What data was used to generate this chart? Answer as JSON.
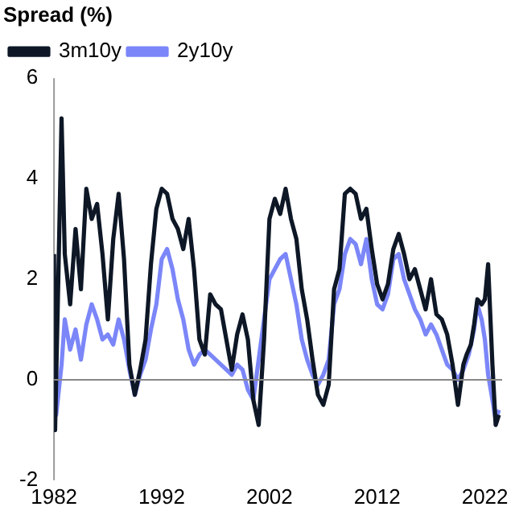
{
  "chart_data": {
    "type": "line",
    "ylabel": "Spread (%)",
    "xlim": [
      1982,
      2023.6
    ],
    "xticks": [
      1982,
      1992,
      2002,
      2012,
      2022
    ],
    "ylim": [
      -2,
      6
    ],
    "yticks": [
      -2,
      0,
      2,
      4,
      6
    ],
    "grid": false,
    "legend": "top left",
    "marker": "none",
    "line_style": "solid",
    "ref_lines": [
      {
        "axis": "y",
        "value": 0
      }
    ],
    "series": [
      {
        "name": "3m10y",
        "color": "#0d1726",
        "x": [
          1982,
          1982.1,
          1982.4,
          1982.7,
          1983,
          1983.5,
          1984,
          1984.5,
          1985,
          1985.5,
          1986,
          1986.5,
          1987,
          1987.5,
          1988,
          1988.5,
          1989,
          1989.5,
          1990,
          1990.5,
          1991,
          1991.5,
          1992,
          1992.5,
          1993,
          1993.5,
          1994,
          1994.5,
          1995,
          1995.5,
          1996,
          1996.5,
          1997,
          1997.5,
          1998,
          1998.5,
          1999,
          1999.5,
          2000,
          2000.5,
          2001,
          2001.5,
          2002,
          2002.5,
          2003,
          2003.5,
          2004,
          2004.5,
          2005,
          2005.5,
          2006,
          2006.5,
          2007,
          2007.5,
          2008,
          2008.5,
          2009,
          2009.5,
          2010,
          2010.5,
          2011,
          2011.5,
          2012,
          2012.5,
          2013,
          2013.5,
          2014,
          2014.5,
          2015,
          2015.5,
          2016,
          2016.5,
          2017,
          2017.5,
          2018,
          2018.5,
          2019,
          2019.5,
          2020,
          2020.3,
          2020.7,
          2021,
          2021.3,
          2021.7,
          2022,
          2022.3,
          2022.7,
          2023,
          2023.3
        ],
        "values": [
          2.5,
          -1,
          2,
          5.2,
          2.5,
          1.5,
          3,
          1.8,
          3.8,
          3.2,
          3.5,
          2.5,
          1.2,
          2.8,
          3.7,
          2.4,
          0.3,
          -0.3,
          0.2,
          0.8,
          2.3,
          3.4,
          3.8,
          3.7,
          3.2,
          3,
          2.6,
          3.2,
          2.2,
          0.8,
          0.5,
          1.7,
          1.5,
          1.4,
          0.8,
          0.2,
          0.9,
          1.3,
          0.8,
          -0.4,
          -0.9,
          0.8,
          3.2,
          3.6,
          3.3,
          3.8,
          3.2,
          2.8,
          1.8,
          1.2,
          0.4,
          -0.3,
          -0.5,
          -0.1,
          1.8,
          2.2,
          3.7,
          3.8,
          3.7,
          3.2,
          3.4,
          2.6,
          1.9,
          1.6,
          1.9,
          2.6,
          2.9,
          2.5,
          2,
          2.2,
          1.8,
          1.4,
          2,
          1.3,
          1.2,
          0.9,
          0.3,
          -0.5,
          0.3,
          0.5,
          0.7,
          1.1,
          1.6,
          1.5,
          1.6,
          2.3,
          0.3,
          -0.9,
          -0.7
        ]
      },
      {
        "name": "2y10y",
        "color": "#7b86f8",
        "x": [
          1982,
          1982.2,
          1982.7,
          1983,
          1983.5,
          1984,
          1984.5,
          1985,
          1985.5,
          1986,
          1986.5,
          1987,
          1987.5,
          1988,
          1988.5,
          1989,
          1989.5,
          1990,
          1990.5,
          1991,
          1991.5,
          1992,
          1992.5,
          1993,
          1993.5,
          1994,
          1994.5,
          1995,
          1995.5,
          1996,
          1996.5,
          1997,
          1997.5,
          1998,
          1998.5,
          1999,
          1999.5,
          2000,
          2000.5,
          2001,
          2001.5,
          2002,
          2002.5,
          2003,
          2003.5,
          2004,
          2004.5,
          2005,
          2005.5,
          2006,
          2006.5,
          2007,
          2007.5,
          2008,
          2008.5,
          2009,
          2009.5,
          2010,
          2010.5,
          2011,
          2011.5,
          2012,
          2012.5,
          2013,
          2013.5,
          2014,
          2014.5,
          2015,
          2015.5,
          2016,
          2016.5,
          2017,
          2017.5,
          2018,
          2018.5,
          2019,
          2019.5,
          2020,
          2020.5,
          2021,
          2021.3,
          2021.7,
          2022,
          2022.3,
          2022.7,
          2023,
          2023.3
        ],
        "values": [
          0.3,
          -0.7,
          0.3,
          1.2,
          0.6,
          1,
          0.4,
          1.1,
          1.5,
          1.2,
          0.8,
          0.9,
          0.7,
          1.2,
          0.8,
          0.2,
          -0.3,
          0.1,
          0.4,
          1,
          1.5,
          2.4,
          2.6,
          2.2,
          1.6,
          1.2,
          0.6,
          0.3,
          0.5,
          0.6,
          0.5,
          0.4,
          0.3,
          0.2,
          0.1,
          0.3,
          0.2,
          -0.2,
          -0.4,
          0.4,
          1.2,
          2,
          2.2,
          2.4,
          2.5,
          2,
          1.5,
          0.8,
          0.4,
          0.1,
          -0.1,
          0.1,
          0.4,
          1.5,
          1.8,
          2.5,
          2.8,
          2.7,
          2.3,
          2.8,
          2,
          1.5,
          1.4,
          1.7,
          2.4,
          2.5,
          2,
          1.7,
          1.4,
          1.2,
          0.9,
          1.1,
          0.9,
          0.6,
          0.3,
          0.2,
          0,
          0.2,
          0.5,
          1,
          1.5,
          1.2,
          0.8,
          0.1,
          -0.4,
          -0.8,
          -0.6
        ]
      }
    ]
  }
}
